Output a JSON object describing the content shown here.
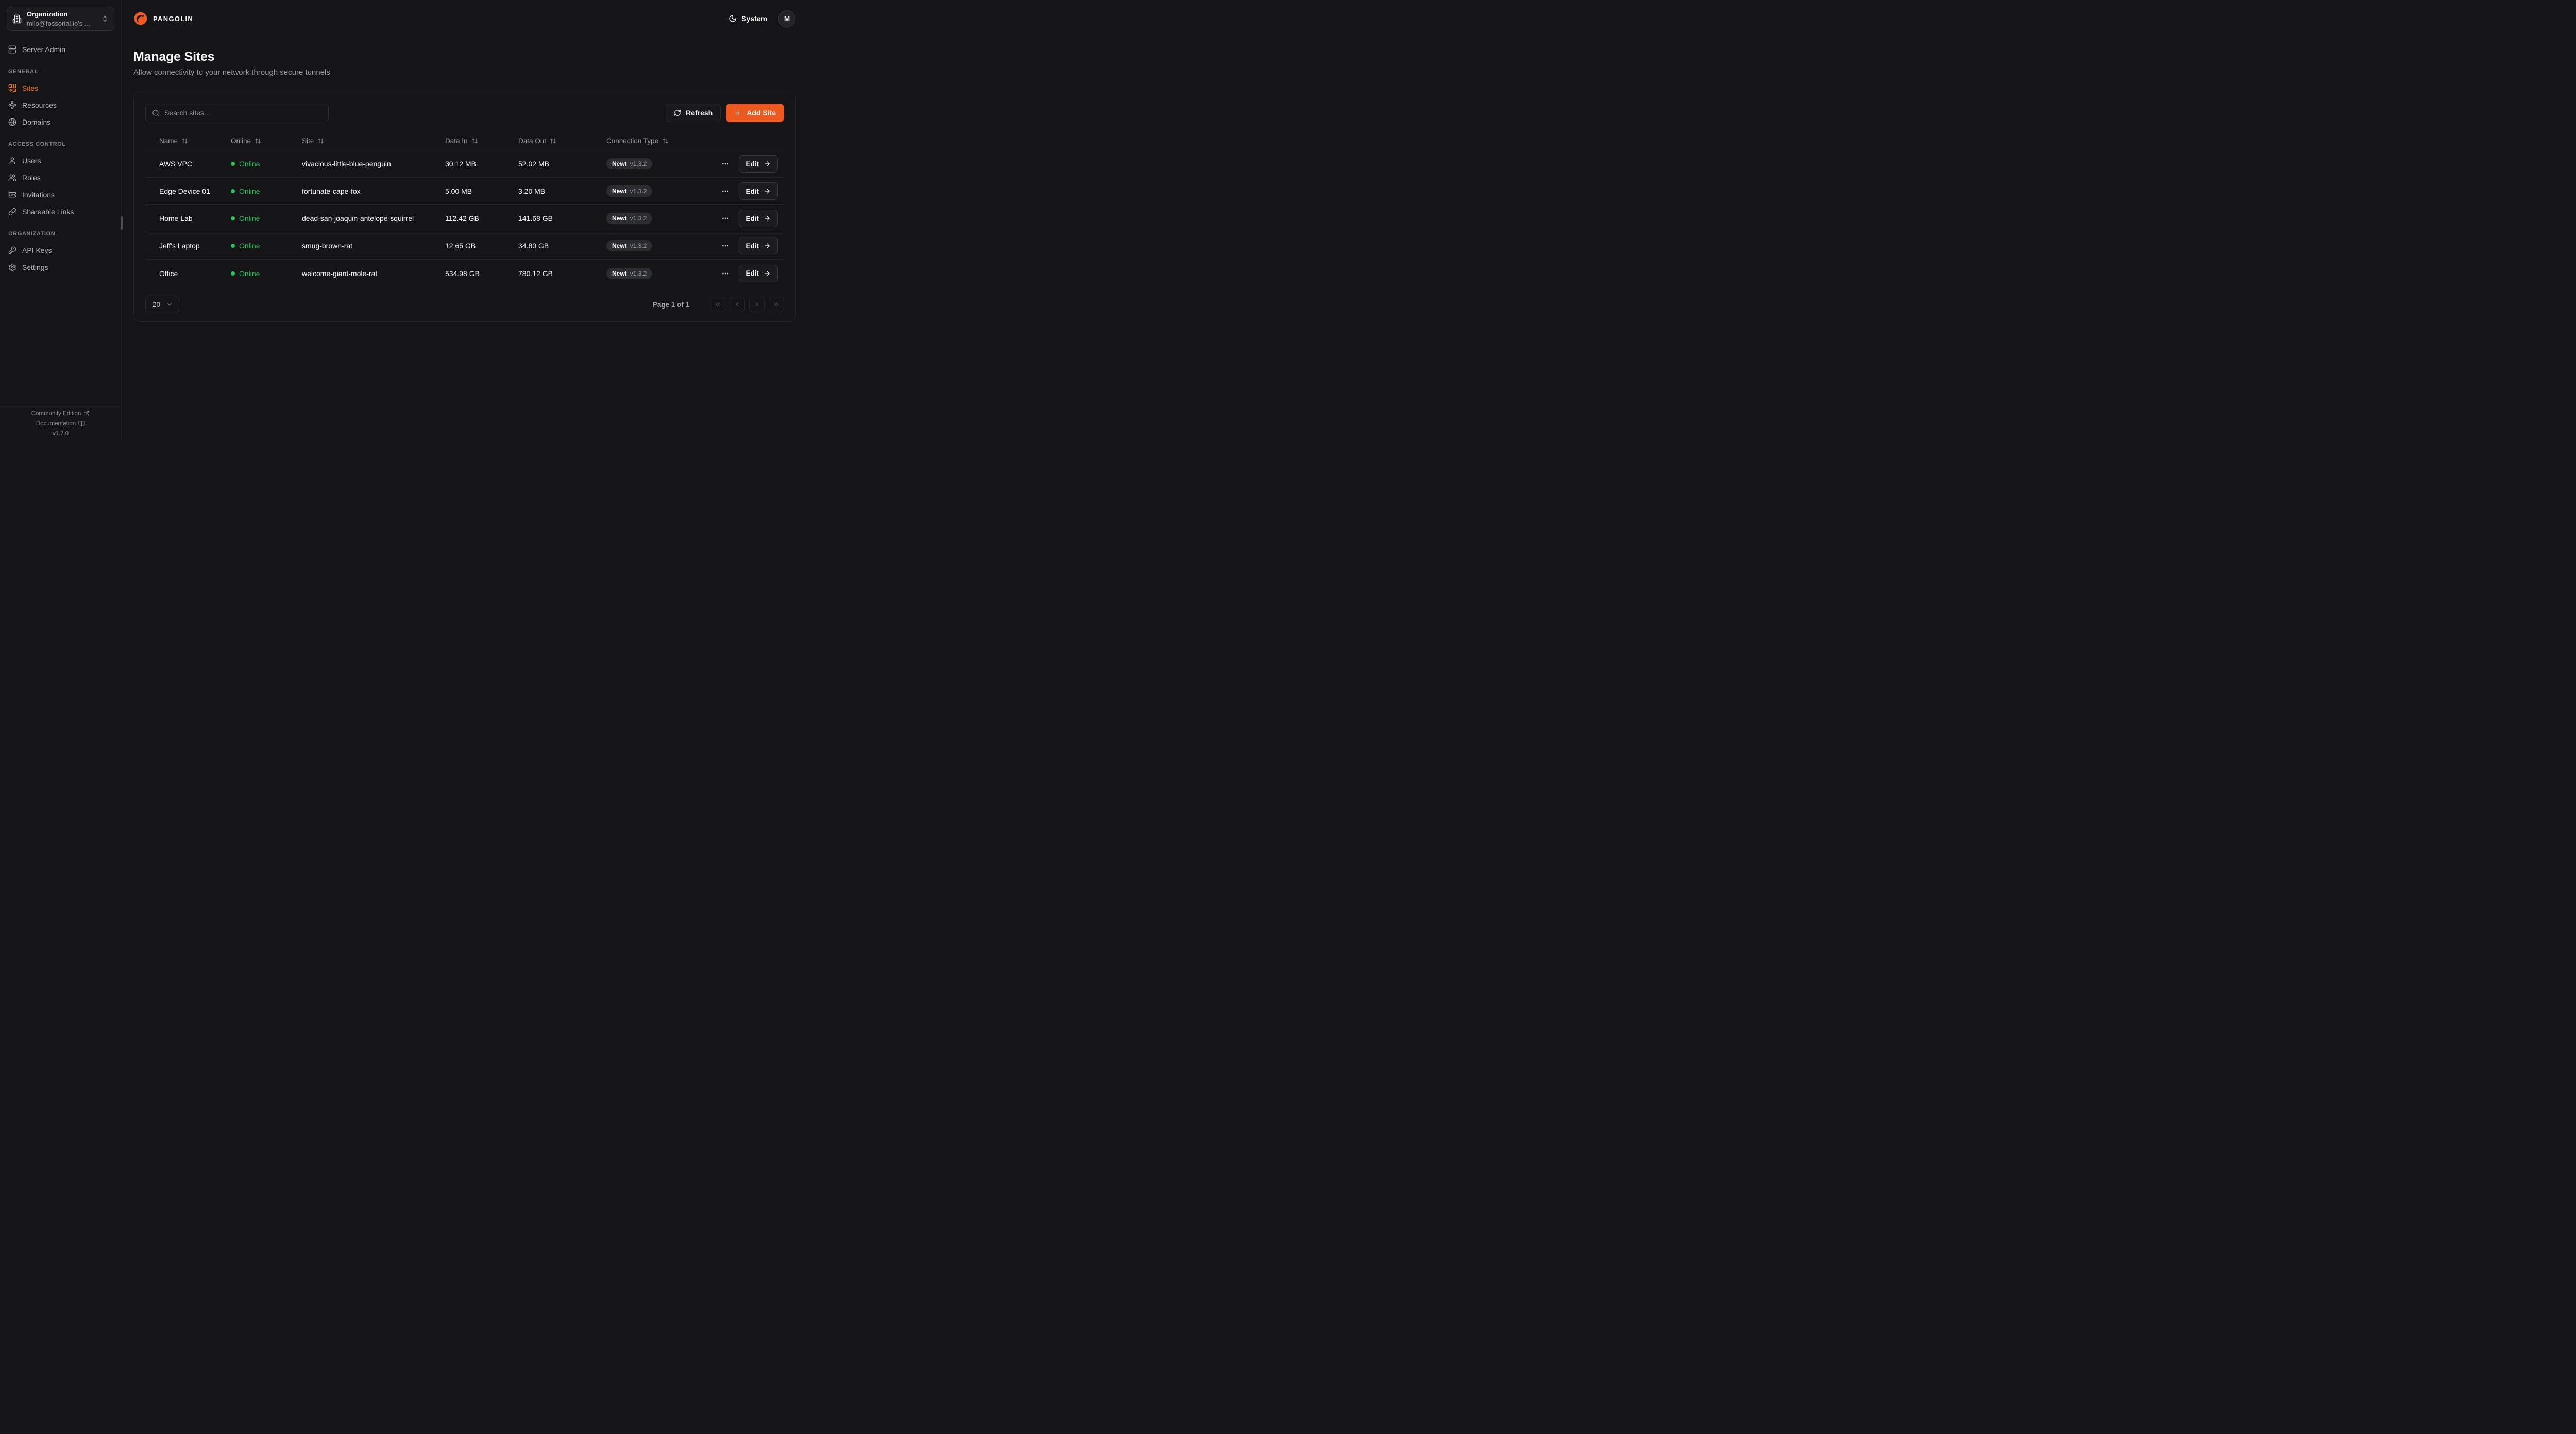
{
  "colors": {
    "accent": "#ED5A1F",
    "sidebar_active": "#F97316",
    "online_green": "#22C55E"
  },
  "sidebar": {
    "org_selector": {
      "title": "Organization",
      "value": "milo@fossorial.io's ...",
      "icon": "building"
    },
    "top_items": [
      {
        "label": "Server Admin",
        "icon": "server"
      }
    ],
    "sections": [
      {
        "heading": "GENERAL",
        "items": [
          {
            "label": "Sites",
            "icon": "combine",
            "active": true
          },
          {
            "label": "Resources",
            "icon": "waypoints"
          },
          {
            "label": "Domains",
            "icon": "globe"
          }
        ]
      },
      {
        "heading": "ACCESS CONTROL",
        "items": [
          {
            "label": "Users",
            "icon": "user"
          },
          {
            "label": "Roles",
            "icon": "users"
          },
          {
            "label": "Invitations",
            "icon": "ticket-check"
          },
          {
            "label": "Shareable Links",
            "icon": "link"
          }
        ]
      },
      {
        "heading": "ORGANIZATION",
        "items": [
          {
            "label": "API Keys",
            "icon": "key"
          },
          {
            "label": "Settings",
            "icon": "settings"
          }
        ]
      }
    ],
    "footer": {
      "community": "Community Edition",
      "documentation": "Documentation",
      "version": "v1.7.0"
    }
  },
  "header": {
    "brand": "PANGOLIN",
    "theme": {
      "label": "System",
      "icon": "moon"
    },
    "avatar": {
      "initial": "M"
    }
  },
  "page": {
    "title": "Manage Sites",
    "subtitle": "Allow connectivity to your network through secure tunnels"
  },
  "toolbar": {
    "search_placeholder": "Search sites...",
    "refresh": "Refresh",
    "add_site": "Add Site"
  },
  "table": {
    "columns": [
      "Name",
      "Online",
      "Site",
      "Data In",
      "Data Out",
      "Connection Type"
    ],
    "edit_label": "Edit",
    "rows": [
      {
        "name": "AWS VPC",
        "online": "Online",
        "site": "vivacious-little-blue-penguin",
        "data_in": "30.12 MB",
        "data_out": "52.02 MB",
        "connection": "Newt",
        "version": "v1.3.2"
      },
      {
        "name": "Edge Device 01",
        "online": "Online",
        "site": "fortunate-cape-fox",
        "data_in": "5.00 MB",
        "data_out": "3.20 MB",
        "connection": "Newt",
        "version": "v1.3.2"
      },
      {
        "name": "Home Lab",
        "online": "Online",
        "site": "dead-san-joaquin-antelope-squirrel",
        "data_in": "112.42 GB",
        "data_out": "141.68 GB",
        "connection": "Newt",
        "version": "v1.3.2"
      },
      {
        "name": "Jeff's Laptop",
        "online": "Online",
        "site": "smug-brown-rat",
        "data_in": "12.65 GB",
        "data_out": "34.80 GB",
        "connection": "Newt",
        "version": "v1.3.2"
      },
      {
        "name": "Office",
        "online": "Online",
        "site": "welcome-giant-mole-rat",
        "data_in": "534.98 GB",
        "data_out": "780.12 GB",
        "connection": "Newt",
        "version": "v1.3.2"
      }
    ]
  },
  "pagination": {
    "page_size": "20",
    "page_label": "Page 1 of 1"
  }
}
